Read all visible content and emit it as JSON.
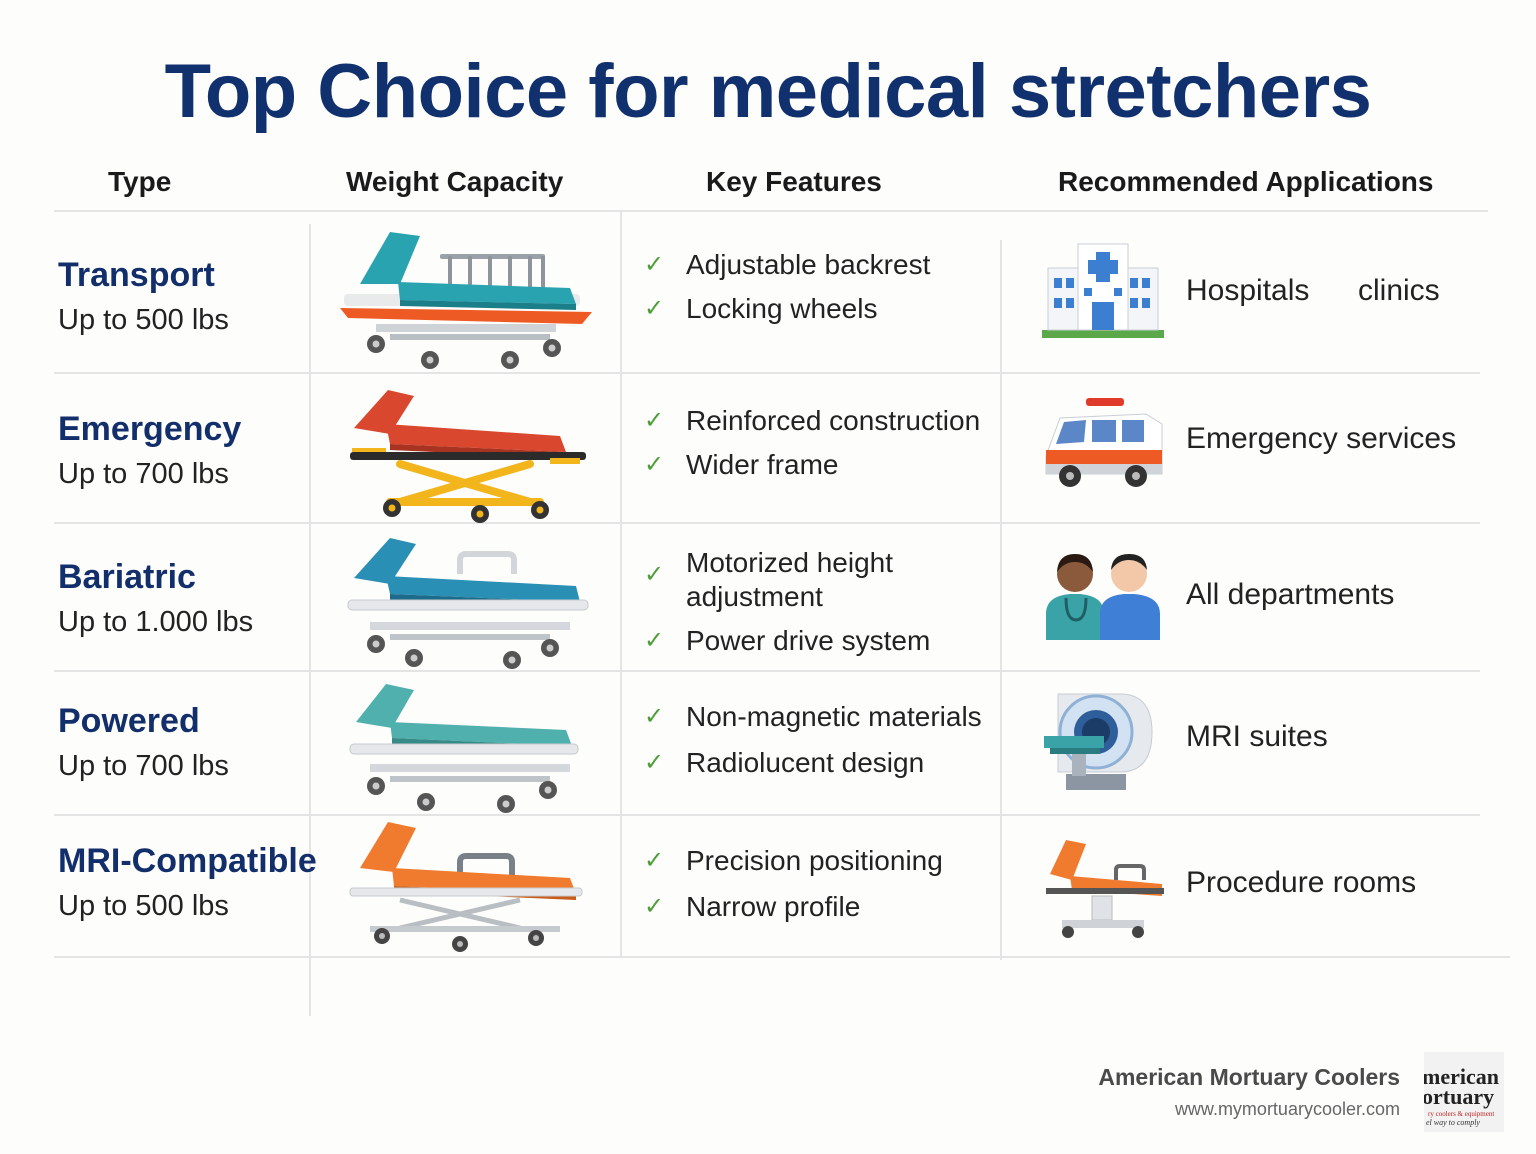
{
  "title": "Top Choice for medical stretchers",
  "headers": {
    "type": "Type",
    "weight": "Weight Capacity",
    "features": "Key Features",
    "applications": "Recommended Applications"
  },
  "rows": [
    {
      "type": "Transport",
      "capacity": "Up to 500 lbs",
      "features": [
        "Adjustable backrest",
        "Locking wheels"
      ],
      "application": "Hospitals",
      "application_extra": "clinics",
      "app_icon": "hospital-icon",
      "mattress_color": "#2aa3b0",
      "frame_color": "#ee5a24"
    },
    {
      "type": "Emergency",
      "capacity": "Up to 700 lbs",
      "features": [
        "Reinforced construction",
        "Wider frame"
      ],
      "application": "Emergency services",
      "app_icon": "ambulance-icon",
      "mattress_color": "#d9472e",
      "frame_color": "#f2b51c"
    },
    {
      "type": "Bariatric",
      "capacity": "Up to 1.000 lbs",
      "features": [
        "Motorized height adjustment",
        "Power drive system"
      ],
      "application": "All departments",
      "app_icon": "medical-staff-icon",
      "mattress_color": "#2a8fb5",
      "frame_color": "#e5e7ea"
    },
    {
      "type": "Powered",
      "capacity": "Up to 700 lbs",
      "features": [
        "Non-magnetic materials",
        "Radiolucent design"
      ],
      "application": "MRI suites",
      "app_icon": "mri-scanner-icon",
      "mattress_color": "#4fb0ad",
      "frame_color": "#e5e7ea"
    },
    {
      "type": "MRI-Compatible",
      "capacity": "Up to 500 lbs",
      "features": [
        "Precision positioning",
        "Narrow profile"
      ],
      "application": "Procedure rooms",
      "app_icon": "procedure-chair-icon",
      "mattress_color": "#f07a2e",
      "frame_color": "#e5e7ea"
    }
  ],
  "brand": {
    "name": "American Mortuary Coolers",
    "url": "www.mymortuarycooler.com",
    "logo_lines": [
      "merican",
      "ortuary",
      "ry coolers & equipment",
      "el way to comply"
    ]
  }
}
